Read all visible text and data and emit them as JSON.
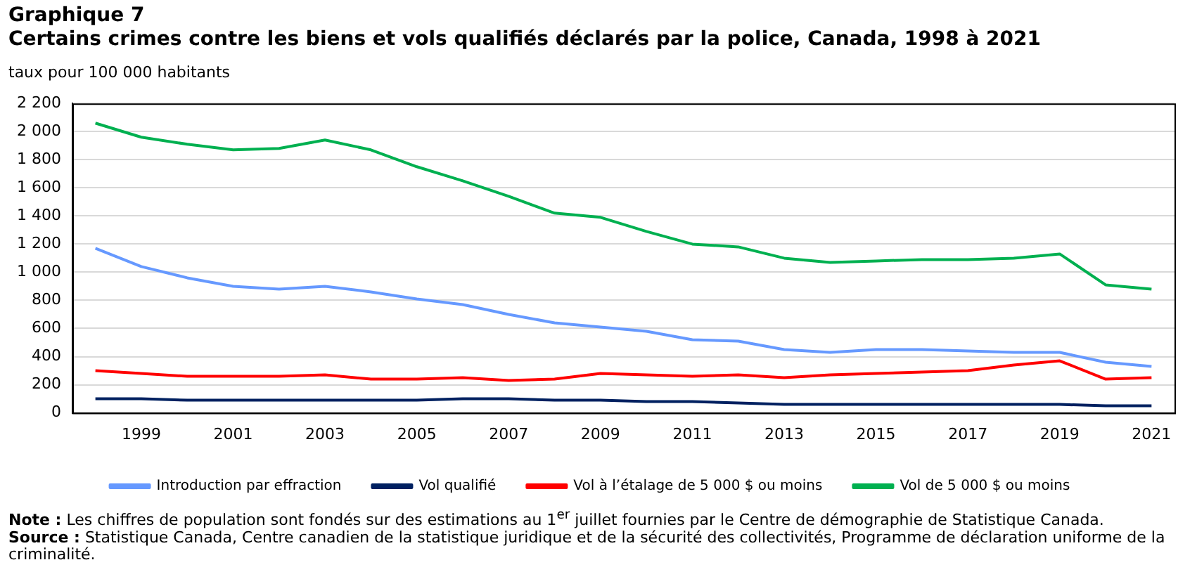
{
  "chart_data": {
    "type": "line",
    "title": "Graphique 7",
    "subtitle": "Certains crimes contre les biens et vols qualifiés déclarés par la police, Canada, 1998 à 2021",
    "ylabel": "taux pour 100 000 habitants",
    "categories": [
      null,
      "1999",
      null,
      "2001",
      null,
      "2003",
      null,
      "2005",
      null,
      "2007",
      null,
      "2009",
      null,
      "2011",
      null,
      "2013",
      null,
      "2015",
      null,
      "2017",
      null,
      "2019",
      null,
      "2021"
    ],
    "series": [
      {
        "name": "Introduction par effraction",
        "color": "#6699ff",
        "values": [
          1170,
          1040,
          960,
          900,
          880,
          900,
          860,
          810,
          770,
          700,
          640,
          610,
          580,
          520,
          510,
          450,
          430,
          450,
          450,
          440,
          430,
          430,
          360,
          330
        ]
      },
      {
        "name": "Vol qualifié",
        "color": "#002060",
        "values": [
          100,
          100,
          90,
          90,
          90,
          90,
          90,
          90,
          100,
          100,
          90,
          90,
          80,
          80,
          70,
          60,
          60,
          60,
          60,
          60,
          60,
          60,
          50,
          50
        ]
      },
      {
        "name": "Vol à l’étalage de 5 000 $ ou moins",
        "color": "#ff0000",
        "values": [
          300,
          280,
          260,
          260,
          260,
          270,
          240,
          240,
          250,
          230,
          240,
          280,
          270,
          260,
          270,
          250,
          270,
          280,
          290,
          300,
          340,
          370,
          240,
          250
        ]
      },
      {
        "name": "Vol de 5 000 $ ou moins",
        "color": "#00b050",
        "values": [
          2060,
          1960,
          1910,
          1870,
          1880,
          1940,
          1870,
          1750,
          1650,
          1540,
          1420,
          1390,
          1290,
          1200,
          1180,
          1100,
          1070,
          1080,
          1090,
          1090,
          1100,
          1130,
          910,
          880
        ]
      }
    ],
    "ylim": [
      0,
      2200
    ],
    "yticks": [
      0,
      200,
      400,
      600,
      800,
      {
        "value": 1000,
        "label": "1 000"
      },
      {
        "value": 1200,
        "label": "1 200"
      },
      {
        "value": 1400,
        "label": "1 400"
      },
      {
        "value": 1600,
        "label": "1 600"
      },
      {
        "value": 1800,
        "label": "1 800"
      },
      {
        "value": 2000,
        "label": "2 000"
      },
      {
        "value": 2200,
        "label": "2 200"
      }
    ],
    "grid": "y",
    "legend": "bottom",
    "marker": "none",
    "line_style": "solid",
    "annotations": [
      "Note : Les chiffres de population sont fondés sur des estimations au 1$^{er}$ juillet fournies par le Centre de démographie de Statistique Canada.",
      "Source : Statistique Canada, Centre canadien de la statistique juridique et de la sécurité des collectivités, Programme de déclaration uniforme de la criminalité."
    ]
  }
}
